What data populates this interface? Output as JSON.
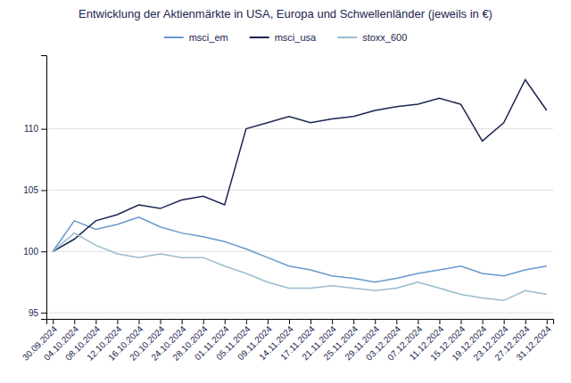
{
  "chart_data": {
    "type": "line",
    "title": "Entwicklung der Aktienmärkte in USA, Europa und Schwellenländer (jeweils in €)",
    "categories": [
      "30.09.2024",
      "04.10.2024",
      "08.10.2024",
      "12.10.2024",
      "16.10.2024",
      "20.10.2024",
      "24.10.2024",
      "28.10.2024",
      "01.11.2024",
      "05.11.2024",
      "09.11.2024",
      "14.11.2024",
      "17.11.2024",
      "21.11.2024",
      "25.11.2024",
      "29.11.2024",
      "03.12.2024",
      "07.12.2024",
      "11.12.2024",
      "15.12.2024",
      "19.12.2024",
      "23.12.2024",
      "27.12.2024",
      "31.12.2024"
    ],
    "series": [
      {
        "name": "msci_em",
        "color": "#6699cc",
        "values": [
          100.0,
          102.5,
          101.8,
          102.2,
          102.8,
          102.0,
          101.5,
          101.2,
          100.8,
          100.2,
          99.5,
          98.8,
          98.5,
          98.0,
          97.8,
          97.5,
          97.8,
          98.2,
          98.5,
          98.8,
          98.2,
          98.0,
          98.5,
          98.8
        ]
      },
      {
        "name": "msci_usa",
        "color": "#1a2550",
        "values": [
          100.0,
          101.0,
          102.5,
          103.0,
          103.8,
          103.5,
          104.2,
          104.5,
          103.8,
          110.0,
          110.5,
          111.0,
          110.5,
          110.8,
          111.0,
          111.5,
          111.8,
          112.0,
          112.5,
          112.0,
          109.0,
          110.5,
          114.0,
          111.5
        ]
      },
      {
        "name": "stoxx_600",
        "color": "#99bbcc",
        "values": [
          100.0,
          101.5,
          100.5,
          99.8,
          99.5,
          99.8,
          99.5,
          99.5,
          98.8,
          98.2,
          97.5,
          97.0,
          97.0,
          97.2,
          97.0,
          96.8,
          97.0,
          97.5,
          97.0,
          96.5,
          96.2,
          96.0,
          96.8,
          96.5
        ]
      }
    ],
    "ylim": [
      94.5,
      116
    ],
    "yticks": [
      95,
      100,
      105,
      110
    ],
    "grid": true,
    "legend": "top"
  }
}
